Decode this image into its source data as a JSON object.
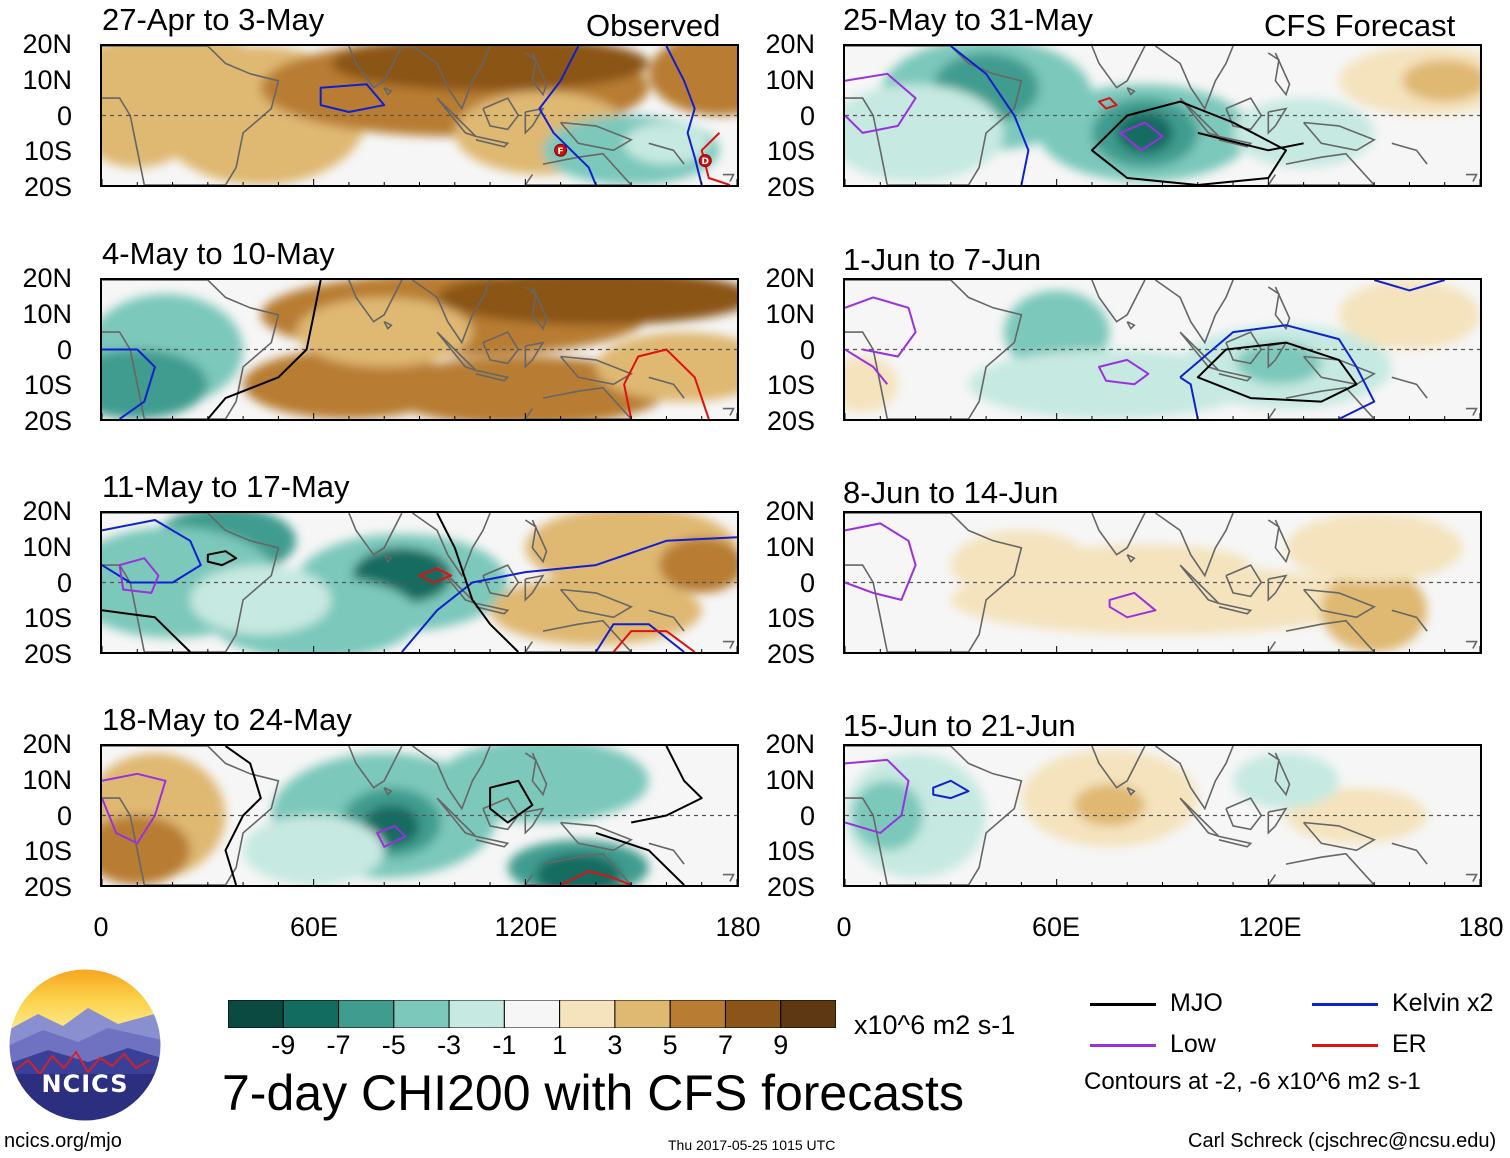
{
  "titles": {
    "observed_tag": "Observed",
    "forecast_tag": "CFS Forecast",
    "main_title": "7-day CHI200 with CFS forecasts"
  },
  "panels": [
    {
      "id": "p1",
      "period": "27-Apr to 3-May"
    },
    {
      "id": "p2",
      "period": "4-May to 10-May"
    },
    {
      "id": "p3",
      "period": "11-May to 17-May"
    },
    {
      "id": "p4",
      "period": "18-May to 24-May"
    },
    {
      "id": "p5",
      "period": "25-May to 31-May"
    },
    {
      "id": "p6",
      "period": "1-Jun to 7-Jun"
    },
    {
      "id": "p7",
      "period": "8-Jun to 14-Jun"
    },
    {
      "id": "p8",
      "period": "15-Jun to 21-Jun"
    }
  ],
  "axes": {
    "lat_labels": [
      "20N",
      "10N",
      "0",
      "10S",
      "20S"
    ],
    "lon_labels": [
      "0",
      "60E",
      "120E",
      "180"
    ],
    "lat_range": [
      -20,
      20
    ],
    "lon_range": [
      0,
      180
    ]
  },
  "colorbar": {
    "ticks": [
      "-9",
      "-7",
      "-5",
      "-3",
      "-1",
      "1",
      "3",
      "5",
      "7",
      "9"
    ],
    "units": "x10^6 m2 s-1",
    "colors": [
      "#0b4a40",
      "#126c60",
      "#3f9c8f",
      "#7cc8bb",
      "#c6e9e1",
      "#f6f6f6",
      "#f4e3bd",
      "#dfb872",
      "#b87d33",
      "#8b5418",
      "#5e3812"
    ]
  },
  "legend": {
    "items": [
      {
        "label": "MJO",
        "color": "#000000"
      },
      {
        "label": "Kelvin x2",
        "color": "#1020d0"
      },
      {
        "label": "Low",
        "color": "#9b30e0"
      },
      {
        "label": "ER",
        "color": "#e01010"
      }
    ],
    "contour_note": "Contours at -2, -6 x10^6 m2 s-1"
  },
  "footer": {
    "logo_text": "NCICS",
    "url": "ncics.org/mjo",
    "timestamp": "Thu 2017-05-25 1015 UTC",
    "author": "Carl Schreck (cjschrec@ncsu.edu)"
  },
  "tc_markers": [
    "F",
    "D"
  ]
}
